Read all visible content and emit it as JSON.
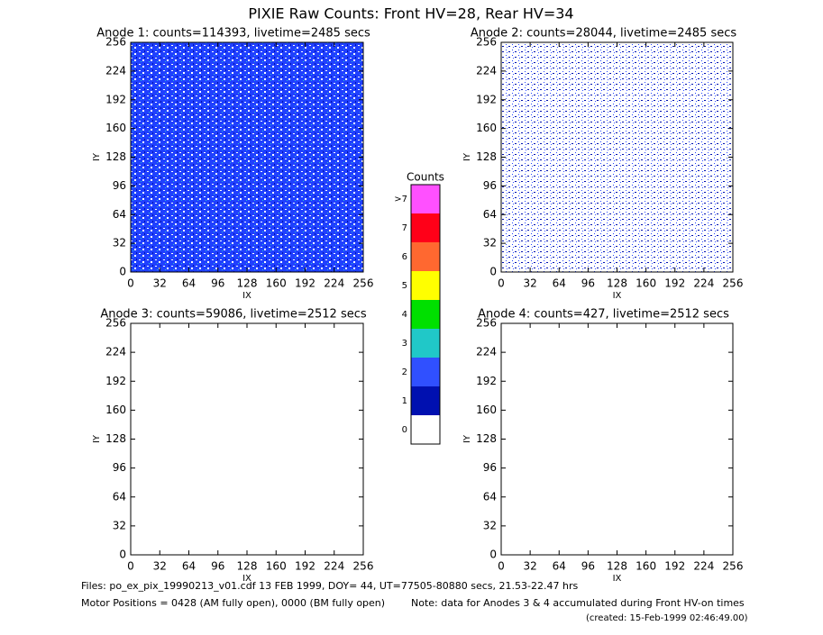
{
  "title": "PIXIE Raw Counts:  Front HV=28, Rear HV=34",
  "chart_data": [
    {
      "type": "heatmap",
      "title": "Anode 1: counts=114393, livetime=2485 secs",
      "xlabel": "IX",
      "ylabel": "IY",
      "xlim": [
        0,
        256
      ],
      "ylim": [
        0,
        256
      ],
      "xticks": [
        0,
        32,
        64,
        96,
        128,
        160,
        192,
        224,
        256
      ],
      "yticks": [
        0,
        32,
        64,
        96,
        128,
        160,
        192,
        224,
        256
      ]
    },
    {
      "type": "heatmap",
      "title": "Anode 2: counts=28044, livetime=2485 secs",
      "xlabel": "IX",
      "ylabel": "IY",
      "xlim": [
        0,
        256
      ],
      "ylim": [
        0,
        256
      ],
      "xticks": [
        0,
        32,
        64,
        96,
        128,
        160,
        192,
        224,
        256
      ],
      "yticks": [
        0,
        32,
        64,
        96,
        128,
        160,
        192,
        224,
        256
      ]
    },
    {
      "type": "heatmap",
      "title": "Anode 3: counts=59086, livetime=2512 secs",
      "xlabel": "IX",
      "ylabel": "IY",
      "xlim": [
        0,
        256
      ],
      "ylim": [
        0,
        256
      ],
      "xticks": [
        0,
        32,
        64,
        96,
        128,
        160,
        192,
        224,
        256
      ],
      "yticks": [
        0,
        32,
        64,
        96,
        128,
        160,
        192,
        224,
        256
      ]
    },
    {
      "type": "heatmap",
      "title": "Anode 4: counts=427, livetime=2512 secs",
      "xlabel": "IX",
      "ylabel": "IY",
      "xlim": [
        0,
        256
      ],
      "ylim": [
        0,
        256
      ],
      "xticks": [
        0,
        32,
        64,
        96,
        128,
        160,
        192,
        224,
        256
      ],
      "yticks": [
        0,
        32,
        64,
        96,
        128,
        160,
        192,
        224,
        256
      ]
    }
  ],
  "colorbar": {
    "title": "Counts",
    "labels": [
      "0",
      "1",
      "2",
      "3",
      "4",
      "5",
      "6",
      "7",
      ">7"
    ],
    "colors": [
      "#ffffff",
      "#0010b0",
      "#3050ff",
      "#20c8c8",
      "#00e000",
      "#ffff00",
      "#ff6830",
      "#ff0018",
      "#ff50ff"
    ]
  },
  "footer": {
    "files": "Files: po_ex_pix_19990213_v01.cdf    13 FEB 1999, DOY= 44, UT=77505-80880 secs, 21.53-22.47 hrs",
    "motor": "Motor Positions = 0428 (AM fully open), 0000 (BM fully open)",
    "note": "Note: data for Anodes 3 & 4 accumulated during Front HV-on times",
    "created": "(created: 15-Feb-1999 02:46:49.00)"
  }
}
